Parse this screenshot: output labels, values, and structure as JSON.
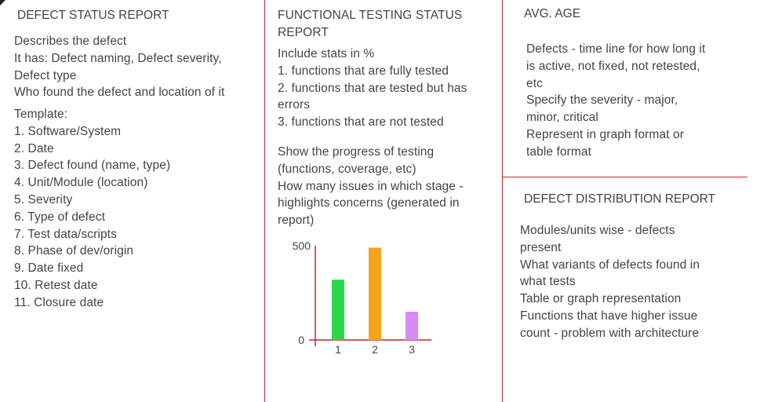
{
  "col1": {
    "title": "DEFECT STATUS REPORT",
    "lines": [
      "Describes the defect",
      "It has: Defect naming, Defect severity,",
      "Defect type",
      "Who found the defect and location of it"
    ],
    "template_label": "Template:",
    "template_items": [
      "1. Software/System",
      "2. Date",
      "3. Defect found (name, type)",
      "4. Unit/Module (location)",
      "5. Severity",
      "6. Type of defect",
      "7. Test data/scripts",
      "8. Phase of dev/origin",
      "9. Date fixed",
      "10. Retest date",
      "11. Closure date"
    ]
  },
  "col2": {
    "title_lines": [
      "FUNCTIONAL TESTING STATUS",
      "REPORT"
    ],
    "lines_a": [
      "Include stats in %",
      "1. functions that are fully tested",
      "2. functions that are tested but has",
      "errors",
      "3. functions that are not tested"
    ],
    "lines_b": [
      "Show the progress of testing",
      "(functions, coverage, etc)",
      "How many issues in which stage -",
      "highlights concerns (generated in",
      "report)"
    ]
  },
  "col3_top": {
    "title": "AVG. AGE",
    "lines": [
      "Defects - time line for how long it",
      "is active, not fixed, not retested,",
      "etc",
      "Specify the severity - major,",
      "minor, critical",
      "Represent in graph format or",
      "table format"
    ]
  },
  "col3_bottom": {
    "title": "DEFECT DISTRIBUTION REPORT",
    "lines": [
      "Modules/units wise - defects",
      "present",
      "What variants of defects found in",
      "what tests",
      "Table or graph representation",
      "Functions that have higher issue",
      "count - problem with architecture"
    ]
  },
  "chart_data": {
    "type": "bar",
    "categories": [
      "1",
      "2",
      "3"
    ],
    "values": [
      320,
      490,
      150
    ],
    "colors": [
      "#2ed64b",
      "#f5a31a",
      "#d98af2"
    ],
    "ylim": [
      0,
      500
    ],
    "ytick_labels": [
      "0",
      "500"
    ],
    "axis_color": "#c0262d",
    "title": "",
    "xlabel": "",
    "ylabel": ""
  },
  "colors": {
    "divider": "#c0262d",
    "text": "#444444"
  }
}
